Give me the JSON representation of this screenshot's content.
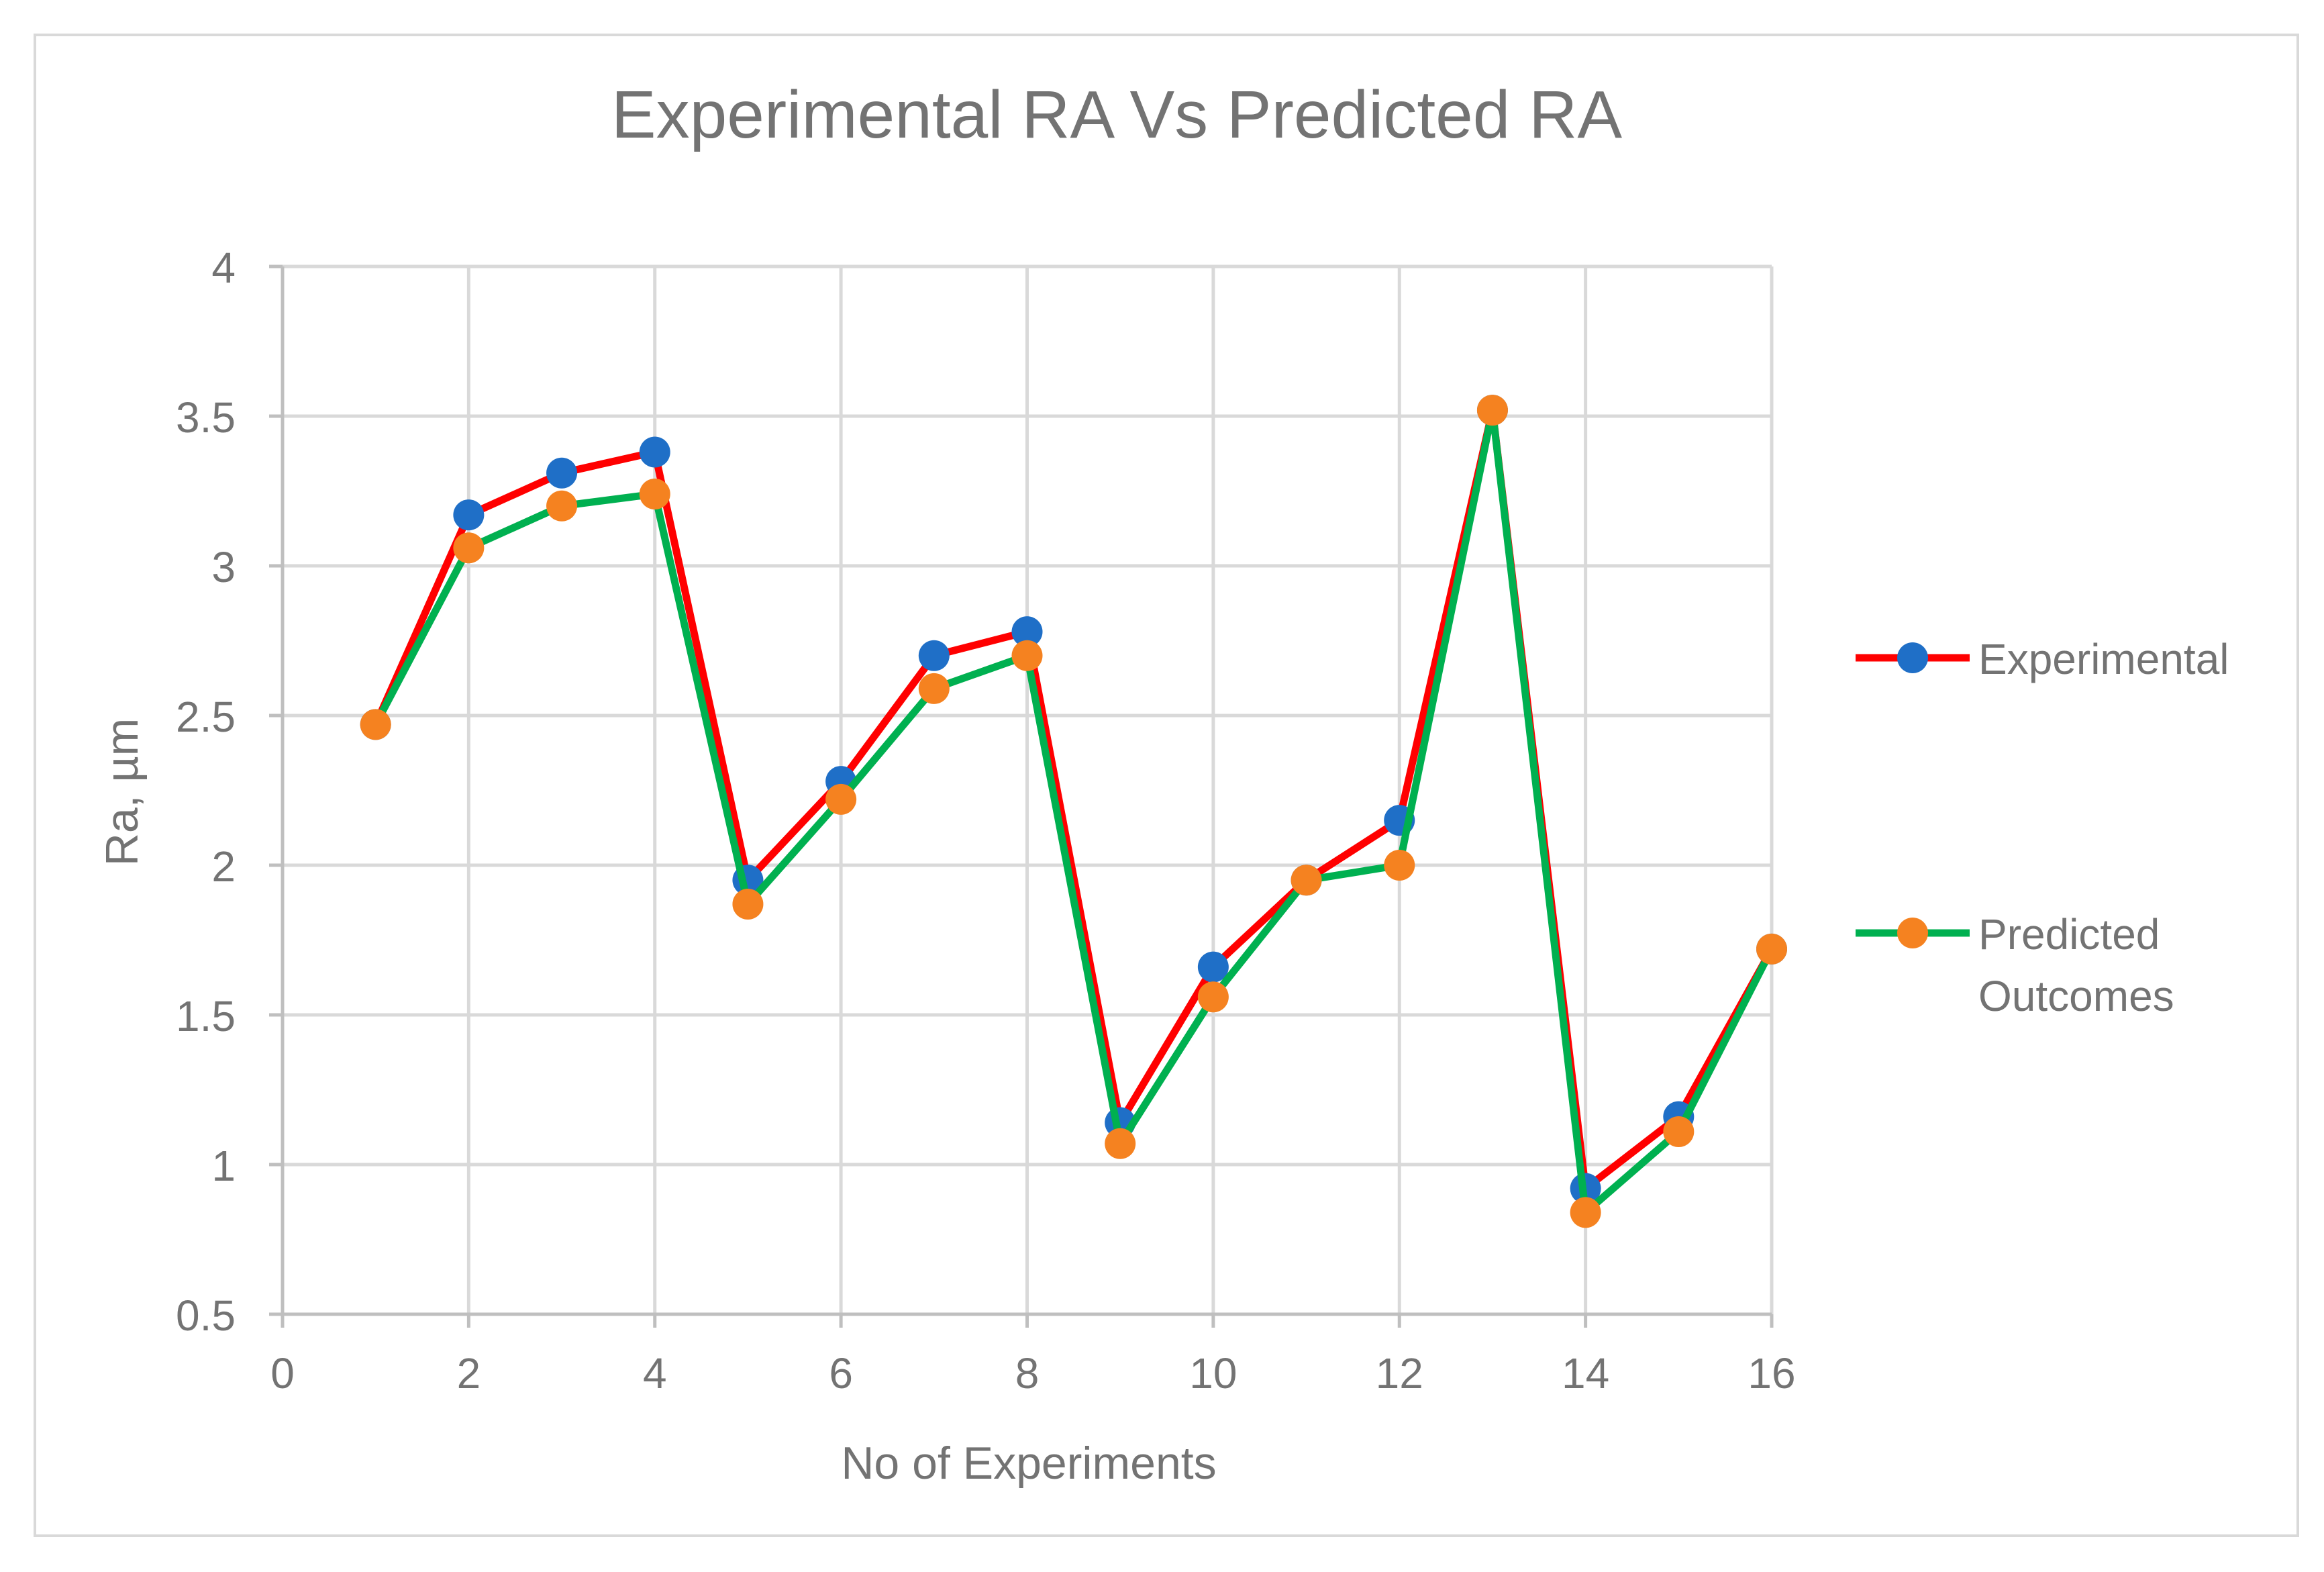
{
  "chart_data": {
    "type": "scatter",
    "title": "Experimental RA Vs Predicted RA",
    "xlabel": "No of Experiments",
    "ylabel": "Ra, µm",
    "xlim": [
      0,
      16
    ],
    "ylim": [
      0.5,
      4
    ],
    "xticks": [
      "0",
      "2",
      "4",
      "6",
      "8",
      "10",
      "12",
      "14",
      "16"
    ],
    "yticks": [
      "0.5",
      "1",
      "1.5",
      "2",
      "2.5",
      "3",
      "3.5",
      "4"
    ],
    "grid": true,
    "legend_position": "right",
    "x": [
      1,
      2,
      3,
      4,
      5,
      6,
      7,
      8,
      9,
      10,
      11,
      12,
      13,
      14,
      15,
      16
    ],
    "series": [
      {
        "name": "Experimental",
        "line_color": "#ff0000",
        "marker_color": "#1f6fc7",
        "values": [
          2.47,
          3.17,
          3.31,
          3.38,
          1.95,
          2.28,
          2.7,
          2.78,
          1.14,
          1.66,
          1.95,
          2.15,
          3.52,
          0.92,
          1.16,
          1.72
        ]
      },
      {
        "name": "Predicted Outcomes",
        "legend_lines": [
          "Predicted",
          "Outcomes"
        ],
        "line_color": "#00b050",
        "marker_color": "#f58220",
        "values": [
          2.47,
          3.06,
          3.2,
          3.24,
          1.87,
          2.22,
          2.59,
          2.7,
          1.07,
          1.56,
          1.95,
          2.0,
          3.52,
          0.84,
          1.11,
          1.72
        ]
      }
    ]
  }
}
